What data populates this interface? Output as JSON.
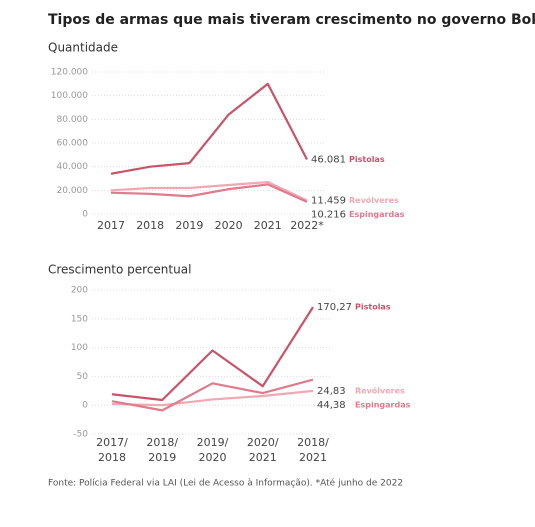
{
  "title": "Tipos de armas que mais tiveram crescimento no governo Bolsonaro",
  "source": "Fonte: Polícia Federal via LAI (Lei de Acesso à Informação). *Até junho de 2022",
  "chart_data": [
    {
      "type": "line",
      "title": "Quantidade",
      "categories": [
        "2017",
        "2018",
        "2019",
        "2020",
        "2021",
        "2022*"
      ],
      "ylim": [
        0,
        120000
      ],
      "yticks": [
        0,
        {
          "value": 20000,
          "label": "20.000"
        },
        {
          "value": 40000,
          "label": "40.000"
        },
        {
          "value": 60000,
          "label": "60.000"
        },
        {
          "value": 80000,
          "label": "80.000"
        },
        {
          "value": 100000,
          "label": "100.000"
        },
        {
          "value": 120000,
          "label": "120.000"
        }
      ],
      "grid": true,
      "series": [
        {
          "name": "Pistolas",
          "color": "#c9546a",
          "values": [
            34000,
            40000,
            43000,
            84000,
            110000,
            46081
          ],
          "value_labels": [
            null,
            null,
            null,
            null,
            null,
            "46.081"
          ]
        },
        {
          "name": "Revólveres",
          "color": "#f2a7b4",
          "values": [
            20000,
            22000,
            22000,
            24500,
            27000,
            11459
          ],
          "value_labels": [
            null,
            null,
            null,
            null,
            null,
            "11.459"
          ]
        },
        {
          "name": "Espingardas",
          "color": "#e07a8c",
          "values": [
            18000,
            17000,
            15000,
            21000,
            25000,
            10216
          ],
          "value_labels": [
            null,
            null,
            null,
            null,
            null,
            "10.216"
          ]
        }
      ]
    },
    {
      "type": "line",
      "title": "Crescimento percentual",
      "categories": [
        "2017/ 2018",
        "2018/ 2019",
        "2019/ 2020",
        "2020/ 2021",
        "2018/ 2021"
      ],
      "ylim": [
        -50,
        200
      ],
      "yticks": [
        -50,
        0,
        50,
        100,
        150,
        200
      ],
      "grid": true,
      "series": [
        {
          "name": "Pistolas",
          "color": "#c9546a",
          "values": [
            19,
            9,
            95,
            33,
            170.27
          ],
          "value_labels": [
            null,
            null,
            null,
            null,
            "170,27"
          ]
        },
        {
          "name": "Revólveres",
          "color": "#f2a7b4",
          "values": [
            2,
            0,
            10,
            16,
            24.83
          ],
          "value_labels": [
            null,
            null,
            null,
            null,
            "24,83"
          ]
        },
        {
          "name": "Espingardas",
          "color": "#e07a8c",
          "values": [
            7,
            -9,
            38,
            21,
            44.38
          ],
          "value_labels": [
            null,
            null,
            null,
            null,
            "44,38"
          ]
        }
      ]
    }
  ]
}
